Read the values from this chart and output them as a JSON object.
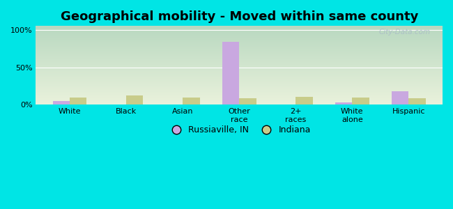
{
  "title": "Geographical mobility - Moved within same county",
  "categories": [
    "White",
    "Black",
    "Asian",
    "Other\nrace",
    "2+\nraces",
    "White\nalone",
    "Hispanic"
  ],
  "russiaville_values": [
    5.0,
    0.0,
    0.0,
    84.0,
    0.0,
    3.5,
    18.0
  ],
  "indiana_values": [
    9.5,
    12.0,
    10.0,
    8.5,
    11.0,
    9.5,
    9.0
  ],
  "russiaville_color": "#c9a8e0",
  "indiana_color": "#c8cc8a",
  "bar_width": 0.3,
  "ylim": [
    0,
    105
  ],
  "yticks": [
    0,
    50,
    100
  ],
  "ytick_labels": [
    "0%",
    "50%",
    "100%"
  ],
  "grad_top": "#b8d8c0",
  "grad_bottom": "#eaf2dc",
  "outer_bg": "#00e5e5",
  "legend_labels": [
    "Russiaville, IN",
    "Indiana"
  ],
  "title_fontsize": 13,
  "tick_fontsize": 8,
  "legend_fontsize": 9,
  "watermark": "City-Data.com"
}
